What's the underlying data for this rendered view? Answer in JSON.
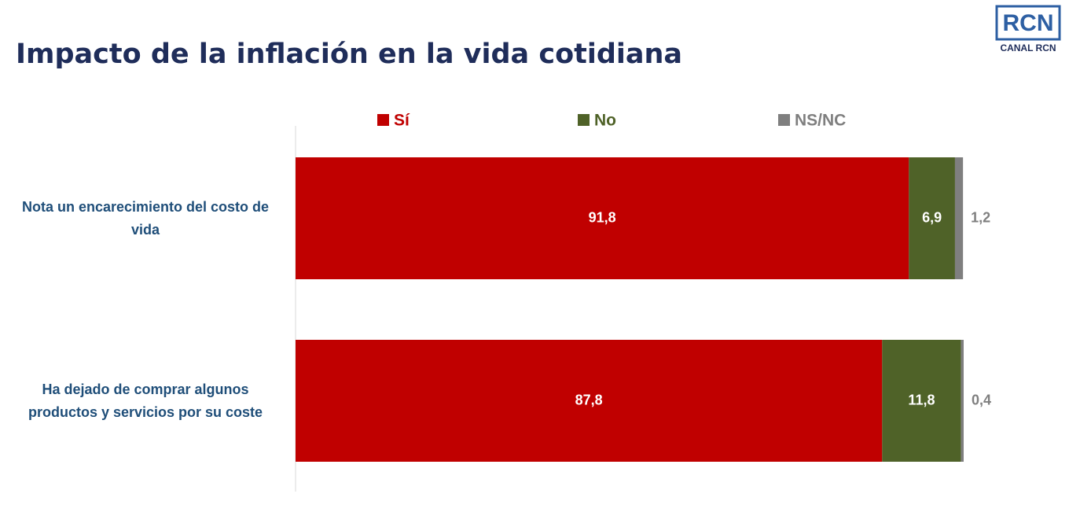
{
  "logo": {
    "mark": "RCN",
    "text": "CANAL RCN"
  },
  "chart_data": {
    "type": "stacked-barh",
    "title": "Impacto de la inflación en la vida cotidiana",
    "categories": [
      "Nota un encarecimiento del costo de vida",
      "Ha dejado de comprar algunos productos y servicios por su coste"
    ],
    "series": [
      {
        "name": "Sí",
        "color": "#c00000",
        "values": [
          91.8,
          87.8
        ],
        "value_labels": [
          "91,8",
          "87,8"
        ]
      },
      {
        "name": "No",
        "color": "#4f6228",
        "values": [
          6.9,
          11.8
        ],
        "value_labels": [
          "6,9",
          "11,8"
        ]
      },
      {
        "name": "NS/NC",
        "color": "#7f7f7f",
        "values": [
          1.2,
          0.4
        ],
        "value_labels": [
          "1,2",
          "0,4"
        ]
      }
    ],
    "legend": "top"
  }
}
